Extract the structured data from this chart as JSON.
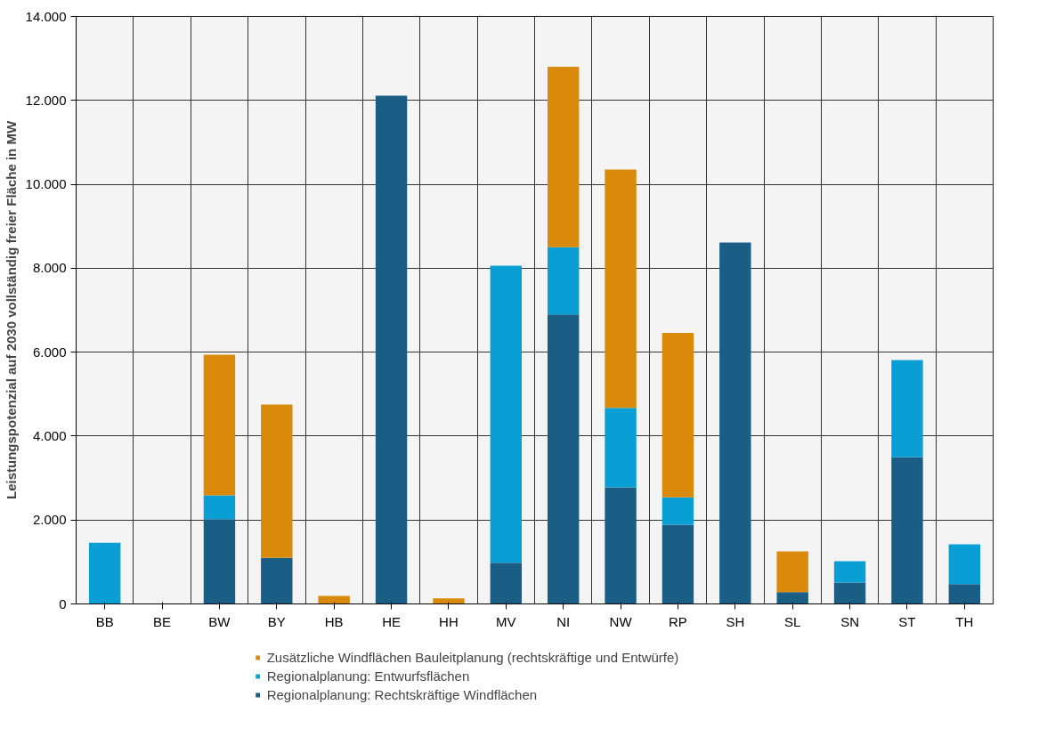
{
  "chart_data": {
    "type": "bar",
    "stacked": true,
    "ylabel": "Leistungspotenzial auf 2030 vollständig freier Fläche in MW",
    "categories": [
      "BB",
      "BE",
      "BW",
      "BY",
      "HB",
      "HE",
      "HH",
      "MV",
      "NI",
      "NW",
      "RP",
      "SH",
      "SL",
      "SN",
      "ST",
      "TH"
    ],
    "series": [
      {
        "name": "Regionalplanung: Rechtskräftige Windflächen",
        "color": "#1a5e86",
        "values": [
          0,
          0,
          2020,
          1100,
          0,
          12110,
          0,
          980,
          6900,
          2780,
          1890,
          8610,
          280,
          510,
          3500,
          470
        ]
      },
      {
        "name": "Regionalplanung: Entwurfsflächen",
        "color": "#0a9fd4",
        "values": [
          1460,
          0,
          570,
          0,
          0,
          0,
          0,
          7080,
          1600,
          1890,
          650,
          0,
          0,
          510,
          2310,
          950
        ]
      },
      {
        "name": "Zusätzliche Windflächen Bauleitplanung (rechtskräftige und Entwürfe)",
        "color": "#d98a0b",
        "values": [
          0,
          0,
          3350,
          3650,
          190,
          0,
          130,
          0,
          4300,
          5680,
          3920,
          0,
          970,
          0,
          0,
          0
        ]
      }
    ],
    "ylim": [
      0,
      14000
    ],
    "yticks": [
      {
        "value": 0,
        "label": "0"
      },
      {
        "value": 2000,
        "label": "2.000"
      },
      {
        "value": 4000,
        "label": "4.000"
      },
      {
        "value": 6000,
        "label": "6.000"
      },
      {
        "value": 8000,
        "label": "8.000"
      },
      {
        "value": 10000,
        "label": "10.000"
      },
      {
        "value": 12000,
        "label": "12.000"
      },
      {
        "value": 14000,
        "label": "14.000"
      }
    ],
    "grid": true,
    "legend": "bottom"
  }
}
